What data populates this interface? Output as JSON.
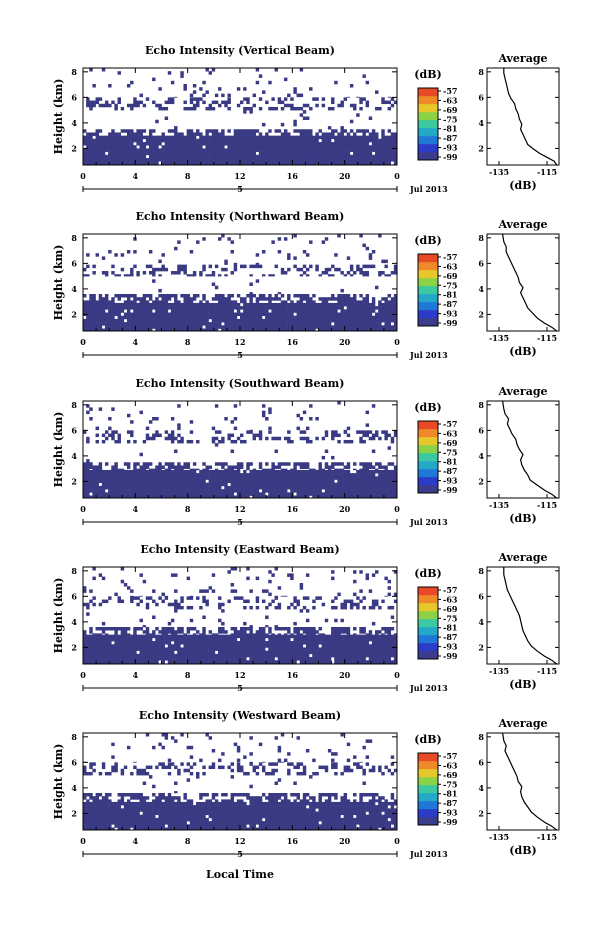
{
  "figure": {
    "x_axis_label": "Local Time",
    "date_label": "Jul 2013",
    "day_marker": "5",
    "average_title": "Average",
    "average_xlabel": "(dB)",
    "colorbar_unit": "(dB)"
  },
  "chart_data": [
    {
      "type": "heatmap",
      "title": "Echo Intensity (Vertical Beam)",
      "ylabel": "Height (km)",
      "xlabel": "Local Time",
      "x_ticks": [
        "0",
        "4",
        "8",
        "12",
        "16",
        "20",
        "0"
      ],
      "x_range_hours": [
        0,
        24
      ],
      "y_ticks": [
        "2",
        "4",
        "6",
        "8"
      ],
      "ylim_km": [
        0.7,
        8.3
      ],
      "colorbar": {
        "label": "(dB)",
        "ticks": [
          "-57",
          "-63",
          "-69",
          "-75",
          "-81",
          "-87",
          "-93",
          "-99"
        ],
        "range": [
          -99,
          -54
        ]
      },
      "layers": [
        {
          "from_km": 0.7,
          "to_km": 3.0,
          "value_db": -97,
          "coverage": 0.97
        },
        {
          "from_km": 3.0,
          "to_km": 3.5,
          "value_db": -97,
          "coverage": 0.55
        },
        {
          "from_km": 3.5,
          "to_km": 5.0,
          "value_db": -97,
          "coverage": 0.02
        },
        {
          "from_km": 5.0,
          "to_km": 6.0,
          "value_db": -97,
          "coverage": 0.35
        },
        {
          "from_km": 6.0,
          "to_km": 8.3,
          "value_db": -97,
          "coverage": 0.06
        }
      ],
      "average_profile": {
        "title": "Average",
        "xlabel": "(dB)",
        "x_ticks": [
          "-135",
          "-115"
        ],
        "xlim": [
          -140,
          -110
        ],
        "y_ticks": [
          "2",
          "4",
          "6",
          "8"
        ],
        "points": [
          [
            -111,
            0.7
          ],
          [
            -112,
            1.0
          ],
          [
            -115,
            1.3
          ],
          [
            -118,
            1.6
          ],
          [
            -121,
            2.0
          ],
          [
            -123,
            2.3
          ],
          [
            -124,
            2.7
          ],
          [
            -125,
            3.1
          ],
          [
            -126,
            3.5
          ],
          [
            -125.5,
            3.9
          ],
          [
            -126.5,
            4.3
          ],
          [
            -127,
            4.7
          ],
          [
            -128,
            5.1
          ],
          [
            -128.5,
            5.5
          ],
          [
            -130,
            5.9
          ],
          [
            -131,
            6.3
          ],
          [
            -131.5,
            6.7
          ],
          [
            -132,
            7.1
          ],
          [
            -132.5,
            7.5
          ],
          [
            -133,
            7.9
          ],
          [
            -133,
            8.3
          ]
        ]
      }
    },
    {
      "type": "heatmap",
      "title": "Echo Intensity (Northward Beam)",
      "ylabel": "Height (km)",
      "xlabel": "Local Time",
      "x_ticks": [
        "0",
        "4",
        "8",
        "12",
        "16",
        "20",
        "0"
      ],
      "x_range_hours": [
        0,
        24
      ],
      "y_ticks": [
        "2",
        "4",
        "6",
        "8"
      ],
      "ylim_km": [
        0.7,
        8.3
      ],
      "colorbar": {
        "label": "(dB)",
        "ticks": [
          "-57",
          "-63",
          "-69",
          "-75",
          "-81",
          "-87",
          "-93",
          "-99"
        ],
        "range": [
          -99,
          -54
        ]
      },
      "layers": [
        {
          "from_km": 0.7,
          "to_km": 2.9,
          "value_db": -97,
          "coverage": 0.97
        },
        {
          "from_km": 2.9,
          "to_km": 3.6,
          "value_db": -97,
          "coverage": 0.6
        },
        {
          "from_km": 3.6,
          "to_km": 5.0,
          "value_db": -97,
          "coverage": 0.02
        },
        {
          "from_km": 5.0,
          "to_km": 5.9,
          "value_db": -97,
          "coverage": 0.3
        },
        {
          "from_km": 5.9,
          "to_km": 8.3,
          "value_db": -97,
          "coverage": 0.05
        }
      ],
      "average_profile": {
        "title": "Average",
        "xlabel": "(dB)",
        "x_ticks": [
          "-135",
          "-115"
        ],
        "xlim": [
          -140,
          -110
        ],
        "y_ticks": [
          "2",
          "4",
          "6",
          "8"
        ],
        "points": [
          [
            -111,
            0.7
          ],
          [
            -113,
            1.0
          ],
          [
            -116,
            1.3
          ],
          [
            -119,
            1.7
          ],
          [
            -121,
            2.1
          ],
          [
            -123,
            2.5
          ],
          [
            -124,
            2.9
          ],
          [
            -125,
            3.3
          ],
          [
            -126,
            3.7
          ],
          [
            -125,
            4.1
          ],
          [
            -126.5,
            4.5
          ],
          [
            -127,
            4.9
          ],
          [
            -128,
            5.3
          ],
          [
            -129,
            5.7
          ],
          [
            -130,
            6.1
          ],
          [
            -131,
            6.5
          ],
          [
            -132,
            6.9
          ],
          [
            -132,
            7.3
          ],
          [
            -133,
            7.7
          ],
          [
            -133.5,
            8.3
          ]
        ]
      }
    },
    {
      "type": "heatmap",
      "title": "Echo Intensity (Southward Beam)",
      "ylabel": "Height (km)",
      "xlabel": "Local Time",
      "x_ticks": [
        "0",
        "4",
        "8",
        "12",
        "16",
        "20",
        "0"
      ],
      "x_range_hours": [
        0,
        24
      ],
      "y_ticks": [
        "2",
        "4",
        "6",
        "8"
      ],
      "ylim_km": [
        0.7,
        8.3
      ],
      "colorbar": {
        "label": "(dB)",
        "ticks": [
          "-57",
          "-63",
          "-69",
          "-75",
          "-81",
          "-87",
          "-93",
          "-99"
        ],
        "range": [
          -99,
          -54
        ]
      },
      "layers": [
        {
          "from_km": 0.7,
          "to_km": 2.9,
          "value_db": -97,
          "coverage": 0.97
        },
        {
          "from_km": 2.9,
          "to_km": 3.5,
          "value_db": -97,
          "coverage": 0.6
        },
        {
          "from_km": 3.5,
          "to_km": 5.0,
          "value_db": -97,
          "coverage": 0.02
        },
        {
          "from_km": 5.0,
          "to_km": 6.0,
          "value_db": -97,
          "coverage": 0.3
        },
        {
          "from_km": 6.0,
          "to_km": 8.3,
          "value_db": -97,
          "coverage": 0.04
        }
      ],
      "average_profile": {
        "title": "Average",
        "xlabel": "(dB)",
        "x_ticks": [
          "-135",
          "-115"
        ],
        "xlim": [
          -140,
          -110
        ],
        "y_ticks": [
          "2",
          "4",
          "6",
          "8"
        ],
        "points": [
          [
            -111,
            0.7
          ],
          [
            -113,
            1.0
          ],
          [
            -116,
            1.3
          ],
          [
            -119,
            1.7
          ],
          [
            -122,
            2.1
          ],
          [
            -123,
            2.5
          ],
          [
            -124.5,
            2.9
          ],
          [
            -125.5,
            3.3
          ],
          [
            -126,
            3.7
          ],
          [
            -125,
            4.1
          ],
          [
            -126.5,
            4.5
          ],
          [
            -127.5,
            4.9
          ],
          [
            -128,
            5.3
          ],
          [
            -129.5,
            5.7
          ],
          [
            -130.5,
            6.1
          ],
          [
            -131.5,
            6.5
          ],
          [
            -131,
            6.9
          ],
          [
            -132.5,
            7.3
          ],
          [
            -133,
            7.7
          ],
          [
            -133.5,
            8.3
          ]
        ]
      }
    },
    {
      "type": "heatmap",
      "title": "Echo Intensity (Eastward Beam)",
      "ylabel": "Height (km)",
      "xlabel": "Local Time",
      "x_ticks": [
        "0",
        "4",
        "8",
        "12",
        "16",
        "20",
        "0"
      ],
      "x_range_hours": [
        0,
        24
      ],
      "y_ticks": [
        "2",
        "4",
        "6",
        "8"
      ],
      "ylim_km": [
        0.7,
        8.3
      ],
      "colorbar": {
        "label": "(dB)",
        "ticks": [
          "-57",
          "-63",
          "-69",
          "-75",
          "-81",
          "-87",
          "-93",
          "-99"
        ],
        "range": [
          -99,
          -54
        ]
      },
      "layers": [
        {
          "from_km": 0.7,
          "to_km": 3.0,
          "value_db": -97,
          "coverage": 0.97
        },
        {
          "from_km": 3.0,
          "to_km": 3.6,
          "value_db": -97,
          "coverage": 0.55
        },
        {
          "from_km": 3.6,
          "to_km": 5.0,
          "value_db": -97,
          "coverage": 0.03
        },
        {
          "from_km": 5.0,
          "to_km": 6.0,
          "value_db": -97,
          "coverage": 0.3
        },
        {
          "from_km": 6.0,
          "to_km": 8.3,
          "value_db": -97,
          "coverage": 0.07
        }
      ],
      "average_profile": {
        "title": "Average",
        "xlabel": "(dB)",
        "x_ticks": [
          "-135",
          "-115"
        ],
        "xlim": [
          -140,
          -110
        ],
        "y_ticks": [
          "2",
          "4",
          "6",
          "8"
        ],
        "points": [
          [
            -111,
            0.7
          ],
          [
            -113,
            1.0
          ],
          [
            -116,
            1.3
          ],
          [
            -119,
            1.7
          ],
          [
            -121.5,
            2.1
          ],
          [
            -123,
            2.5
          ],
          [
            -124,
            2.9
          ],
          [
            -125,
            3.3
          ],
          [
            -125.5,
            3.7
          ],
          [
            -126,
            4.1
          ],
          [
            -126.5,
            4.5
          ],
          [
            -127.5,
            4.9
          ],
          [
            -128.5,
            5.3
          ],
          [
            -129.5,
            5.7
          ],
          [
            -130.5,
            6.1
          ],
          [
            -131.5,
            6.5
          ],
          [
            -132,
            6.9
          ],
          [
            -132.5,
            7.3
          ],
          [
            -133,
            7.7
          ],
          [
            -133,
            8.3
          ]
        ]
      }
    },
    {
      "type": "heatmap",
      "title": "Echo Intensity (Westward Beam)",
      "ylabel": "Height (km)",
      "xlabel": "Local Time",
      "x_ticks": [
        "0",
        "4",
        "8",
        "12",
        "16",
        "20",
        "0"
      ],
      "x_range_hours": [
        0,
        24
      ],
      "y_ticks": [
        "2",
        "4",
        "6",
        "8"
      ],
      "ylim_km": [
        0.7,
        8.3
      ],
      "colorbar": {
        "label": "(dB)",
        "ticks": [
          "-57",
          "-63",
          "-69",
          "-75",
          "-81",
          "-87",
          "-93",
          "-99"
        ],
        "range": [
          -99,
          -54
        ]
      },
      "layers": [
        {
          "from_km": 0.7,
          "to_km": 2.9,
          "value_db": -97,
          "coverage": 0.97
        },
        {
          "from_km": 2.9,
          "to_km": 3.6,
          "value_db": -97,
          "coverage": 0.6
        },
        {
          "from_km": 3.6,
          "to_km": 5.0,
          "value_db": -97,
          "coverage": 0.03
        },
        {
          "from_km": 5.0,
          "to_km": 6.0,
          "value_db": -97,
          "coverage": 0.35
        },
        {
          "from_km": 6.0,
          "to_km": 8.3,
          "value_db": -97,
          "coverage": 0.06
        }
      ],
      "average_profile": {
        "title": "Average",
        "xlabel": "(dB)",
        "x_ticks": [
          "-135",
          "-115"
        ],
        "xlim": [
          -140,
          -110
        ],
        "y_ticks": [
          "2",
          "4",
          "6",
          "8"
        ],
        "points": [
          [
            -111,
            0.7
          ],
          [
            -113,
            1.0
          ],
          [
            -116,
            1.3
          ],
          [
            -119,
            1.7
          ],
          [
            -121.5,
            2.1
          ],
          [
            -123,
            2.5
          ],
          [
            -124.5,
            2.9
          ],
          [
            -125.5,
            3.3
          ],
          [
            -126,
            3.7
          ],
          [
            -125.5,
            4.1
          ],
          [
            -127,
            4.5
          ],
          [
            -127.5,
            4.9
          ],
          [
            -128.5,
            5.3
          ],
          [
            -129.5,
            5.7
          ],
          [
            -130.5,
            6.1
          ],
          [
            -131.5,
            6.5
          ],
          [
            -132.5,
            6.9
          ],
          [
            -132,
            7.3
          ],
          [
            -133,
            7.7
          ],
          [
            -133.5,
            8.3
          ]
        ]
      }
    }
  ]
}
